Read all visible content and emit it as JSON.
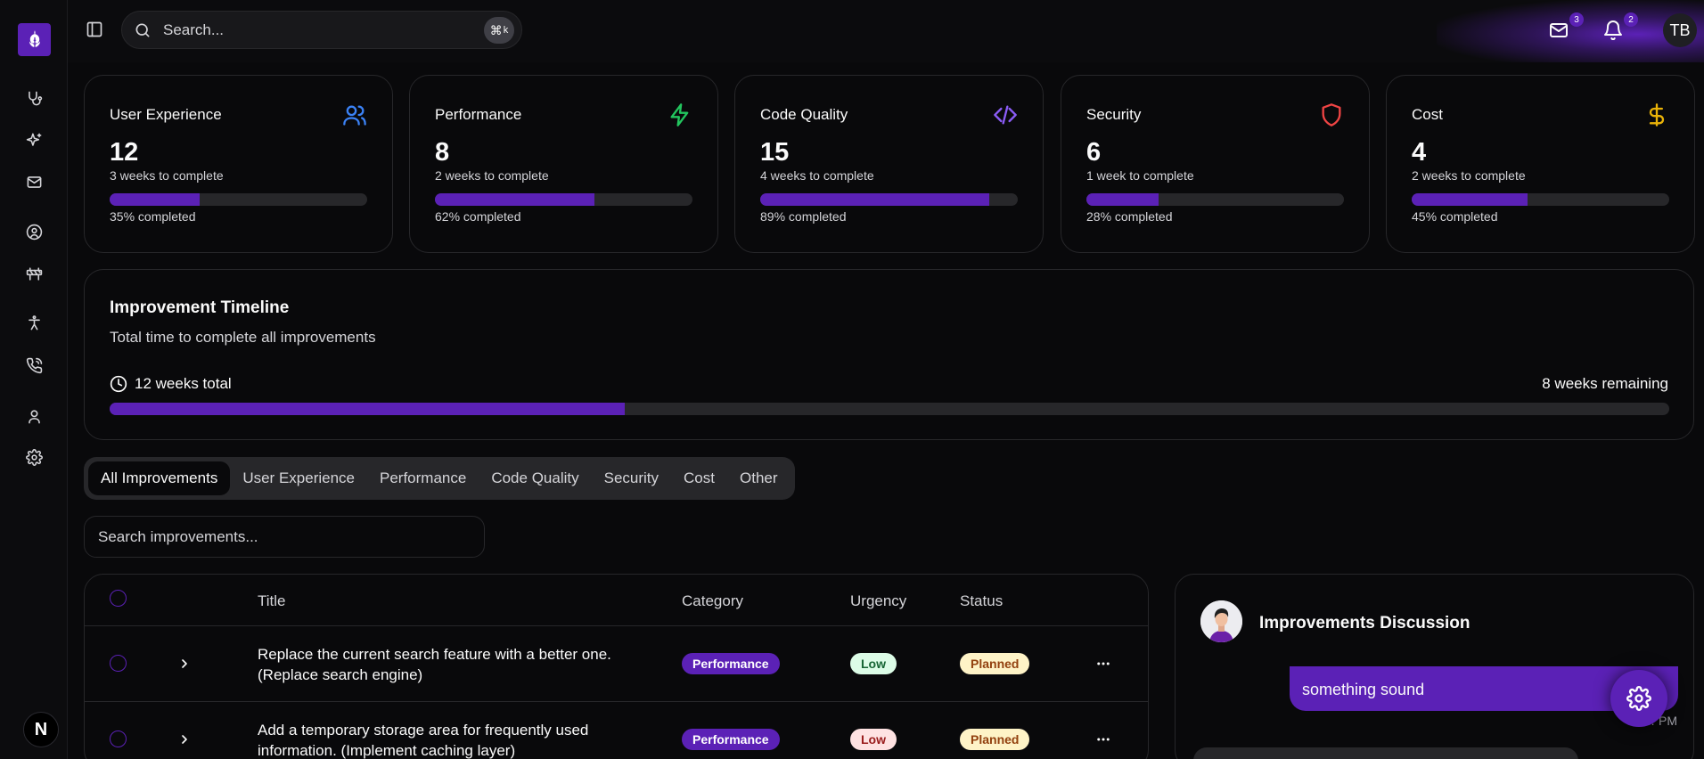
{
  "search": {
    "placeholder": "Search...",
    "shortcut_symbol": "⌘",
    "shortcut_key": "k"
  },
  "header": {
    "mail_badge": "3",
    "bell_badge": "2",
    "user_initials": "TB"
  },
  "sidebar": {
    "items": [
      {
        "icon": "stethoscope-icon"
      },
      {
        "icon": "sparkles-icon"
      },
      {
        "icon": "mail-icon"
      },
      {
        "icon": "user-circle-icon"
      },
      {
        "icon": "barrier-icon"
      },
      {
        "icon": "accessibility-icon"
      },
      {
        "icon": "phone-call-icon"
      },
      {
        "icon": "user-icon"
      },
      {
        "icon": "gear-icon"
      }
    ],
    "bottom_avatar_letter": "N"
  },
  "cards": [
    {
      "title": "User Experience",
      "value": "12",
      "subtitle": "3 weeks to complete",
      "progress": 35,
      "progress_label": "35% completed",
      "icon": "users-icon",
      "icon_color": "#3b82f6"
    },
    {
      "title": "Performance",
      "value": "8",
      "subtitle": "2 weeks to complete",
      "progress": 62,
      "progress_label": "62% completed",
      "icon": "zap-icon",
      "icon_color": "#22c55e"
    },
    {
      "title": "Code Quality",
      "value": "15",
      "subtitle": "4 weeks to complete",
      "progress": 89,
      "progress_label": "89% completed",
      "icon": "code-icon",
      "icon_color": "#8b5cf6"
    },
    {
      "title": "Security",
      "value": "6",
      "subtitle": "1 week to complete",
      "progress": 28,
      "progress_label": "28% completed",
      "icon": "shield-icon",
      "icon_color": "#ef4444"
    },
    {
      "title": "Cost",
      "value": "4",
      "subtitle": "2 weeks to complete",
      "progress": 45,
      "progress_label": "45% completed",
      "icon": "dollar-icon",
      "icon_color": "#eab308"
    }
  ],
  "timeline": {
    "title": "Improvement Timeline",
    "subtitle": "Total time to complete all improvements",
    "total_label": "12 weeks total",
    "remaining_label": "8 weeks remaining",
    "progress": 33
  },
  "tabs": [
    "All Improvements",
    "User Experience",
    "Performance",
    "Code Quality",
    "Security",
    "Cost",
    "Other"
  ],
  "improvements_search": {
    "placeholder": "Search improvements..."
  },
  "table": {
    "columns": {
      "title": "Title",
      "category": "Category",
      "urgency": "Urgency",
      "status": "Status"
    },
    "rows": [
      {
        "title_line1": "Replace the current search feature with a better one.",
        "title_line2": "(Replace search engine)",
        "category": "Performance",
        "urgency": "Low",
        "status": "Planned"
      },
      {
        "title_line1": "Add a temporary storage area for frequently used",
        "title_line2": "information. (Implement caching layer)",
        "category": "Performance",
        "urgency": "Low",
        "status": "Planned"
      }
    ]
  },
  "discussion": {
    "title": "Improvements Discussion",
    "message_text": "something sound",
    "time_partial": "2… PM"
  },
  "colors": {
    "accent": "#5b21b6",
    "background": "#09090b",
    "border": "#27272a"
  }
}
